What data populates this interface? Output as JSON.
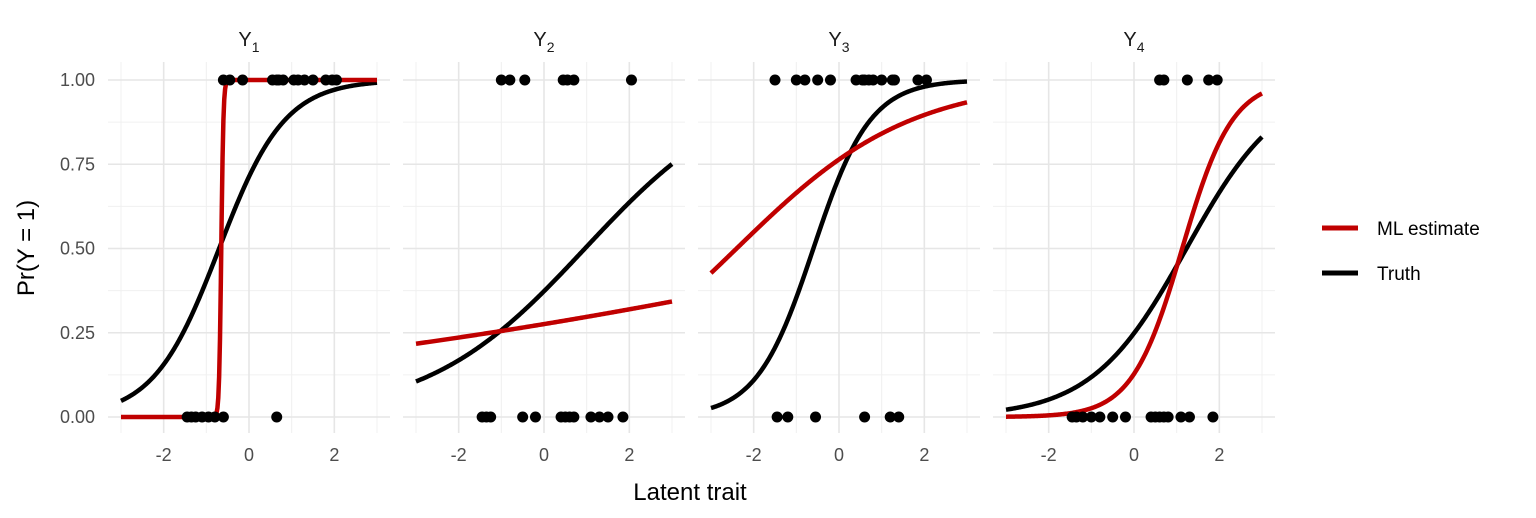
{
  "chart_data": {
    "type": "line",
    "xlabel": "Latent trait",
    "ylabel": "Pr(Y = 1)",
    "xlim": [
      -3,
      3
    ],
    "ylim": [
      0,
      1
    ],
    "x_ticks": [
      -2,
      0,
      2
    ],
    "x_tick_labels": [
      "-2",
      "0",
      "2"
    ],
    "y_ticks": [
      0,
      0.25,
      0.5,
      0.75,
      1
    ],
    "y_tick_labels": [
      "0.00",
      "0.25",
      "0.50",
      "0.75",
      "1.00"
    ],
    "grid": true,
    "legend": {
      "placement": "right",
      "entries": [
        {
          "label": "ML estimate",
          "color": "#c00000"
        },
        {
          "label": "Truth",
          "color": "#000000"
        }
      ]
    },
    "panels": [
      {
        "label_main": "Y",
        "label_sub": "1",
        "ml_estimate": {
          "a": 40,
          "b": -0.65
        },
        "truth": {
          "a": 1.3,
          "b": -0.7
        },
        "points_y1": [
          -0.6,
          -0.45,
          -0.15,
          0.55,
          0.65,
          0.7,
          0.8,
          1.05,
          1.15,
          1.3,
          1.5,
          1.8,
          1.95,
          2.05
        ],
        "points_y0": [
          -1.45,
          -1.35,
          -1.25,
          -1.1,
          -0.95,
          -0.8,
          -0.6,
          0.65
        ]
      },
      {
        "label_main": "Y",
        "label_sub": "2",
        "ml_estimate": {
          "a": 0.105,
          "b": 9.2
        },
        "truth": {
          "a": 0.54,
          "b": 0.96
        },
        "points_y1": [
          -1.0,
          -0.8,
          -0.45,
          0.45,
          0.55,
          0.7,
          2.05
        ],
        "points_y0": [
          -1.45,
          -1.35,
          -1.25,
          -0.5,
          -0.2,
          0.4,
          0.5,
          0.6,
          0.7,
          1.1,
          1.3,
          1.5,
          1.85
        ]
      },
      {
        "label_main": "Y",
        "label_sub": "3",
        "ml_estimate": {
          "a": 0.49,
          "b": -2.4
        },
        "truth": {
          "a": 1.5,
          "b": -0.6
        },
        "points_y1": [
          -1.5,
          -1.0,
          -0.8,
          -0.5,
          -0.2,
          0.4,
          0.55,
          0.6,
          0.7,
          0.8,
          1.0,
          1.25,
          1.3,
          1.85,
          2.05
        ],
        "points_y0": [
          -1.45,
          -1.2,
          -0.55,
          0.6,
          1.2,
          1.4
        ]
      },
      {
        "label_main": "Y",
        "label_sub": "4",
        "ml_estimate": {
          "a": 1.7,
          "b": 1.13
        },
        "truth": {
          "a": 0.9,
          "b": 1.23
        },
        "points_y1": [
          0.6,
          0.7,
          1.25,
          1.75,
          1.95
        ],
        "points_y0": [
          -1.45,
          -1.35,
          -1.2,
          -1.0,
          -0.8,
          -0.5,
          -0.2,
          0.4,
          0.5,
          0.6,
          0.7,
          0.8,
          1.1,
          1.3,
          1.85
        ]
      }
    ]
  }
}
